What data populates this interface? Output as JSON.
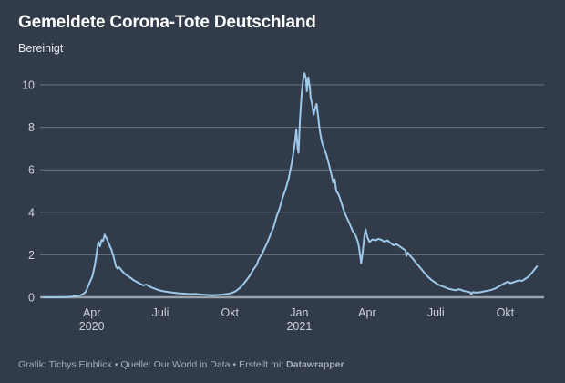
{
  "header": {
    "title": "Gemeldete Corona-Tote Deutschland",
    "subtitle": "Bereinigt"
  },
  "footer": {
    "attribution": "Grafik: Tichys Einblick",
    "separator": "•",
    "source": "Quelle: Our World in Data",
    "created_with": "Erstellt mit",
    "tool": "Datawrapper"
  },
  "colors": {
    "background": "#313b4a",
    "line": "#9dc8e8",
    "gridline": "#6e7682",
    "baseline": "#9aa2ad",
    "tick_label": "#cdd2d9",
    "title": "#ffffff",
    "footer_text": "#a6adb8"
  },
  "chart_data": {
    "type": "line",
    "title": "Gemeldete Corona-Tote Deutschland",
    "subtitle": "Bereinigt",
    "series_name": "Gemeldete Corona-Tote Deutschland (bereinigt)",
    "legend": "none",
    "grid": "horizontal",
    "y_axis": {
      "ticks": [
        0,
        2,
        4,
        6,
        8,
        10
      ],
      "range": [
        0,
        10.8
      ]
    },
    "x_axis": {
      "range": [
        "2020-01-28",
        "2021-11-14"
      ],
      "ticks": [
        {
          "date": "2020-04-01",
          "label": "Apr",
          "sublabel": "2020"
        },
        {
          "date": "2020-07-01",
          "label": "Juli"
        },
        {
          "date": "2020-10-01",
          "label": "Okt"
        },
        {
          "date": "2021-01-01",
          "label": "Jan",
          "sublabel": "2021"
        },
        {
          "date": "2021-04-01",
          "label": "Apr"
        },
        {
          "date": "2021-07-01",
          "label": "Juli"
        },
        {
          "date": "2021-10-01",
          "label": "Okt"
        }
      ]
    },
    "points": [
      [
        "2020-01-28",
        0
      ],
      [
        "2020-02-08",
        0
      ],
      [
        "2020-02-18",
        0
      ],
      [
        "2020-02-28",
        0.01
      ],
      [
        "2020-03-06",
        0.03
      ],
      [
        "2020-03-12",
        0.06
      ],
      [
        "2020-03-17",
        0.1
      ],
      [
        "2020-03-21",
        0.16
      ],
      [
        "2020-03-24",
        0.26
      ],
      [
        "2020-03-27",
        0.5
      ],
      [
        "2020-03-30",
        0.75
      ],
      [
        "2020-04-02",
        1.0
      ],
      [
        "2020-04-05",
        1.5
      ],
      [
        "2020-04-07",
        1.95
      ],
      [
        "2020-04-09",
        2.45
      ],
      [
        "2020-04-10",
        2.6
      ],
      [
        "2020-04-12",
        2.4
      ],
      [
        "2020-04-14",
        2.7
      ],
      [
        "2020-04-16",
        2.65
      ],
      [
        "2020-04-18",
        2.95
      ],
      [
        "2020-04-21",
        2.75
      ],
      [
        "2020-04-24",
        2.5
      ],
      [
        "2020-04-27",
        2.25
      ],
      [
        "2020-04-30",
        1.9
      ],
      [
        "2020-05-03",
        1.45
      ],
      [
        "2020-05-05",
        1.35
      ],
      [
        "2020-05-07",
        1.42
      ],
      [
        "2020-05-11",
        1.25
      ],
      [
        "2020-05-15",
        1.1
      ],
      [
        "2020-05-19",
        1.0
      ],
      [
        "2020-05-23",
        0.9
      ],
      [
        "2020-05-27",
        0.8
      ],
      [
        "2020-06-01",
        0.7
      ],
      [
        "2020-06-05",
        0.62
      ],
      [
        "2020-06-09",
        0.56
      ],
      [
        "2020-06-12",
        0.6
      ],
      [
        "2020-06-16",
        0.52
      ],
      [
        "2020-06-20",
        0.45
      ],
      [
        "2020-06-25",
        0.38
      ],
      [
        "2020-06-30",
        0.32
      ],
      [
        "2020-07-06",
        0.28
      ],
      [
        "2020-07-12",
        0.25
      ],
      [
        "2020-07-18",
        0.22
      ],
      [
        "2020-07-25",
        0.19
      ],
      [
        "2020-08-01",
        0.17
      ],
      [
        "2020-08-09",
        0.15
      ],
      [
        "2020-08-16",
        0.16
      ],
      [
        "2020-08-24",
        0.13
      ],
      [
        "2020-09-01",
        0.11
      ],
      [
        "2020-09-08",
        0.1
      ],
      [
        "2020-09-15",
        0.11
      ],
      [
        "2020-09-22",
        0.13
      ],
      [
        "2020-09-28",
        0.16
      ],
      [
        "2020-10-03",
        0.2
      ],
      [
        "2020-10-08",
        0.27
      ],
      [
        "2020-10-13",
        0.4
      ],
      [
        "2020-10-18",
        0.58
      ],
      [
        "2020-10-23",
        0.8
      ],
      [
        "2020-10-28",
        1.05
      ],
      [
        "2020-11-01",
        1.3
      ],
      [
        "2020-11-04",
        1.45
      ],
      [
        "2020-11-06",
        1.55
      ],
      [
        "2020-11-08",
        1.78
      ],
      [
        "2020-11-12",
        2.0
      ],
      [
        "2020-11-16",
        2.3
      ],
      [
        "2020-11-20",
        2.6
      ],
      [
        "2020-11-24",
        2.95
      ],
      [
        "2020-11-28",
        3.3
      ],
      [
        "2020-12-02",
        3.8
      ],
      [
        "2020-12-06",
        4.2
      ],
      [
        "2020-12-10",
        4.7
      ],
      [
        "2020-12-14",
        5.1
      ],
      [
        "2020-12-18",
        5.6
      ],
      [
        "2020-12-22",
        6.3
      ],
      [
        "2020-12-26",
        7.2
      ],
      [
        "2020-12-28",
        7.9
      ],
      [
        "2020-12-30",
        7.0
      ],
      [
        "2020-12-31",
        6.8
      ],
      [
        "2021-01-02",
        8.4
      ],
      [
        "2021-01-04",
        9.5
      ],
      [
        "2021-01-06",
        10.2
      ],
      [
        "2021-01-08",
        10.55
      ],
      [
        "2021-01-10",
        10.3
      ],
      [
        "2021-01-11",
        9.7
      ],
      [
        "2021-01-13",
        10.35
      ],
      [
        "2021-01-15",
        9.9
      ],
      [
        "2021-01-16",
        9.4
      ],
      [
        "2021-01-18",
        9.1
      ],
      [
        "2021-01-20",
        8.6
      ],
      [
        "2021-01-22",
        8.9
      ],
      [
        "2021-01-24",
        9.1
      ],
      [
        "2021-01-26",
        8.5
      ],
      [
        "2021-01-28",
        7.9
      ],
      [
        "2021-01-31",
        7.3
      ],
      [
        "2021-02-03",
        7.0
      ],
      [
        "2021-02-06",
        6.7
      ],
      [
        "2021-02-09",
        6.3
      ],
      [
        "2021-02-12",
        5.85
      ],
      [
        "2021-02-15",
        5.4
      ],
      [
        "2021-02-17",
        5.55
      ],
      [
        "2021-02-19",
        5.0
      ],
      [
        "2021-02-22",
        4.85
      ],
      [
        "2021-02-25",
        4.55
      ],
      [
        "2021-02-28",
        4.2
      ],
      [
        "2021-03-03",
        3.9
      ],
      [
        "2021-03-07",
        3.6
      ],
      [
        "2021-03-10",
        3.35
      ],
      [
        "2021-03-13",
        3.1
      ],
      [
        "2021-03-16",
        2.95
      ],
      [
        "2021-03-19",
        2.7
      ],
      [
        "2021-03-21",
        2.4
      ],
      [
        "2021-03-23",
        1.9
      ],
      [
        "2021-03-24",
        1.6
      ],
      [
        "2021-03-26",
        2.1
      ],
      [
        "2021-03-28",
        2.8
      ],
      [
        "2021-03-30",
        3.2
      ],
      [
        "2021-04-01",
        2.85
      ],
      [
        "2021-04-04",
        2.6
      ],
      [
        "2021-04-08",
        2.72
      ],
      [
        "2021-04-12",
        2.68
      ],
      [
        "2021-04-16",
        2.75
      ],
      [
        "2021-04-20",
        2.7
      ],
      [
        "2021-04-24",
        2.62
      ],
      [
        "2021-04-28",
        2.68
      ],
      [
        "2021-05-02",
        2.55
      ],
      [
        "2021-05-06",
        2.45
      ],
      [
        "2021-05-10",
        2.5
      ],
      [
        "2021-05-14",
        2.4
      ],
      [
        "2021-05-18",
        2.3
      ],
      [
        "2021-05-22",
        2.2
      ],
      [
        "2021-05-23",
        1.95
      ],
      [
        "2021-05-25",
        2.1
      ],
      [
        "2021-05-28",
        1.95
      ],
      [
        "2021-06-01",
        1.8
      ],
      [
        "2021-06-05",
        1.6
      ],
      [
        "2021-06-09",
        1.45
      ],
      [
        "2021-06-13",
        1.28
      ],
      [
        "2021-06-17",
        1.1
      ],
      [
        "2021-06-21",
        0.95
      ],
      [
        "2021-06-25",
        0.82
      ],
      [
        "2021-06-29",
        0.72
      ],
      [
        "2021-07-03",
        0.62
      ],
      [
        "2021-07-08",
        0.54
      ],
      [
        "2021-07-13",
        0.47
      ],
      [
        "2021-07-18",
        0.4
      ],
      [
        "2021-07-23",
        0.36
      ],
      [
        "2021-07-28",
        0.33
      ],
      [
        "2021-07-31",
        0.38
      ],
      [
        "2021-08-03",
        0.35
      ],
      [
        "2021-08-07",
        0.3
      ],
      [
        "2021-08-11",
        0.27
      ],
      [
        "2021-08-15",
        0.25
      ],
      [
        "2021-08-17",
        0.14
      ],
      [
        "2021-08-19",
        0.24
      ],
      [
        "2021-08-24",
        0.22
      ],
      [
        "2021-08-29",
        0.24
      ],
      [
        "2021-09-03",
        0.28
      ],
      [
        "2021-09-08",
        0.31
      ],
      [
        "2021-09-13",
        0.35
      ],
      [
        "2021-09-18",
        0.42
      ],
      [
        "2021-09-23",
        0.52
      ],
      [
        "2021-09-28",
        0.62
      ],
      [
        "2021-10-02",
        0.7
      ],
      [
        "2021-10-05",
        0.73
      ],
      [
        "2021-10-08",
        0.66
      ],
      [
        "2021-10-12",
        0.71
      ],
      [
        "2021-10-16",
        0.76
      ],
      [
        "2021-10-20",
        0.8
      ],
      [
        "2021-10-23",
        0.77
      ],
      [
        "2021-10-27",
        0.86
      ],
      [
        "2021-10-31",
        0.95
      ],
      [
        "2021-11-03",
        1.05
      ],
      [
        "2021-11-06",
        1.18
      ],
      [
        "2021-11-09",
        1.32
      ],
      [
        "2021-11-12",
        1.45
      ]
    ]
  }
}
